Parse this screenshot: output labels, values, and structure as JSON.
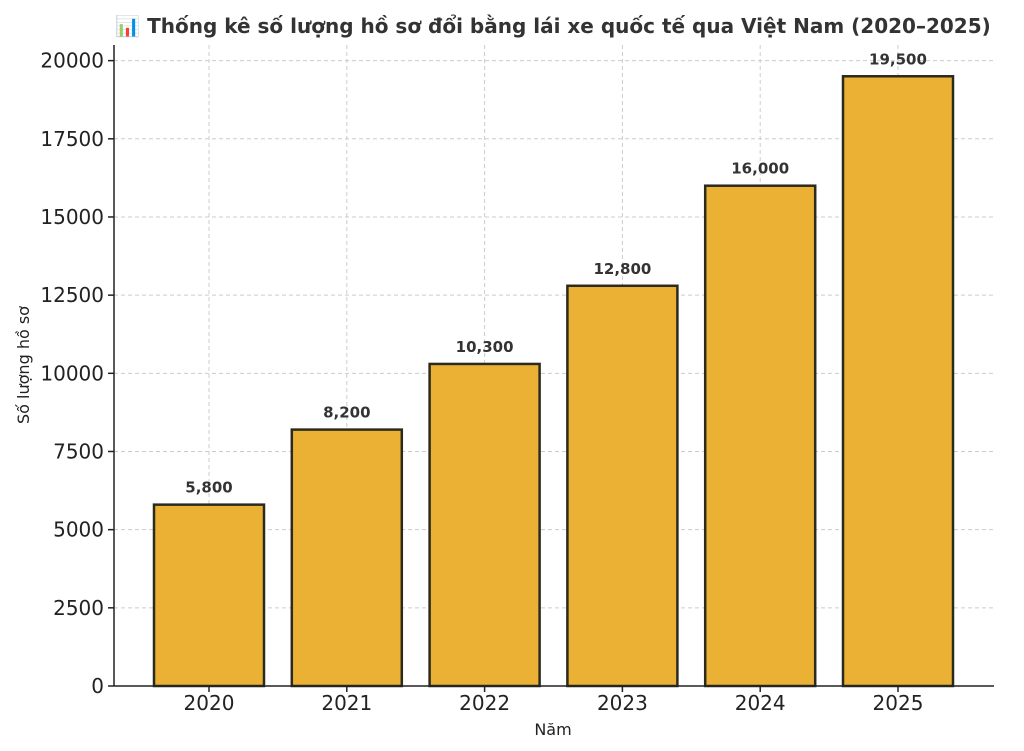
{
  "chart_data": {
    "type": "bar",
    "title": "📊 Thống kê số lượng hồ sơ đổi bằng lái xe quốc tế qua Việt Nam (2020–2025)",
    "xlabel": "Năm",
    "ylabel": "Số lượng hồ sơ",
    "categories": [
      "2020",
      "2021",
      "2022",
      "2023",
      "2024",
      "2025"
    ],
    "values": [
      5800,
      8200,
      10300,
      12800,
      16000,
      19500
    ],
    "value_labels": [
      "5,800",
      "8,200",
      "10,300",
      "12,800",
      "16,000",
      "19,500"
    ],
    "yticks": [
      0,
      2500,
      5000,
      7500,
      10000,
      12500,
      15000,
      17500,
      20000
    ],
    "ylim": [
      0,
      20500
    ],
    "grid": true,
    "bar_color": "#EBB134",
    "bar_edge_color": "#2b2a1f"
  }
}
